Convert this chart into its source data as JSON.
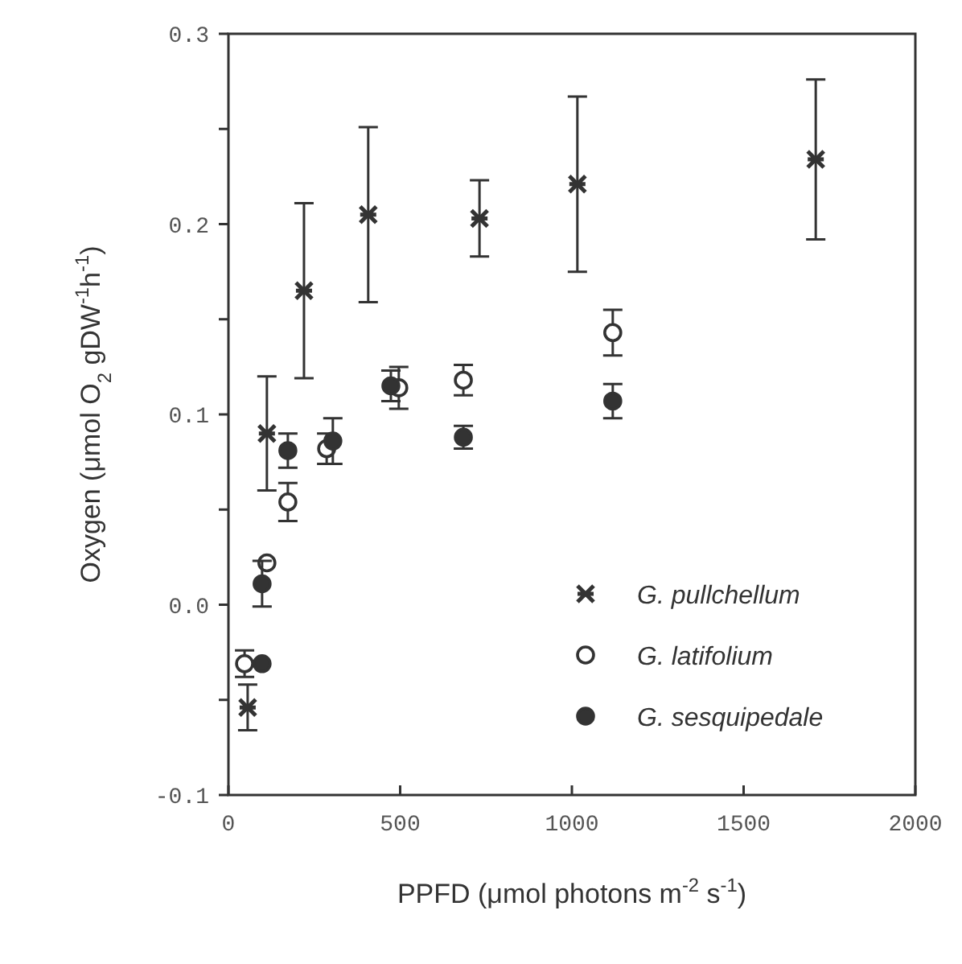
{
  "chart_data": {
    "type": "scatter",
    "xlabel": "PPFD  (μmol photons m$^{-2}$ s$^{-1}$)",
    "ylabel": "Oxygen (μmol O$_{2}$ gDW$^{-1}$h$^{-1}$)",
    "xlim": [
      0,
      2000
    ],
    "ylim": [
      -0.1,
      0.3
    ],
    "xticks": [
      0,
      500,
      1000,
      1500,
      2000
    ],
    "yticks": [
      {
        "value": -0.1,
        "label": "-0.1"
      },
      {
        "value": -0.05,
        "label": null
      },
      {
        "value": 0,
        "label": "0.0"
      },
      {
        "value": 0.05,
        "label": null
      },
      {
        "value": 0.1,
        "label": "0.1"
      },
      {
        "value": 0.15,
        "label": null
      },
      {
        "value": 0.2,
        "label": "0.2"
      },
      {
        "value": 0.25,
        "label": null
      },
      {
        "value": 0.3,
        "label": "0.3"
      }
    ],
    "legend": "bottom right",
    "grid": false,
    "series": [
      {
        "name": "G. pullchellum",
        "color": "#333333",
        "marker": "cross",
        "x": [
          56,
          112,
          220,
          407,
          731,
          1016,
          1710
        ],
        "values": [
          -0.054,
          0.09,
          0.165,
          0.205,
          0.203,
          0.221,
          0.234
        ],
        "errors": [
          0.012,
          0.03,
          0.046,
          0.046,
          0.02,
          0.046,
          0.042
        ]
      },
      {
        "name": "G. latifolium",
        "color": "#ffffff",
        "marker": "circle",
        "x": [
          47,
          112,
          173,
          286,
          496,
          684,
          1119
        ],
        "values": [
          -0.031,
          0.022,
          0.054,
          0.082,
          0.114,
          0.118,
          0.143
        ],
        "errors": [
          0.007,
          null,
          0.01,
          0.008,
          0.011,
          0.008,
          0.012
        ]
      },
      {
        "name": "G. sesquipedale",
        "color": "#333333",
        "marker": "circle",
        "x": [
          98,
          98,
          173,
          304,
          473,
          684,
          1119
        ],
        "values": [
          -0.031,
          0.011,
          0.081,
          0.086,
          0.115,
          0.088,
          0.107
        ],
        "errors": [
          null,
          0.012,
          0.009,
          0.012,
          0.008,
          0.006,
          0.009
        ]
      }
    ]
  }
}
